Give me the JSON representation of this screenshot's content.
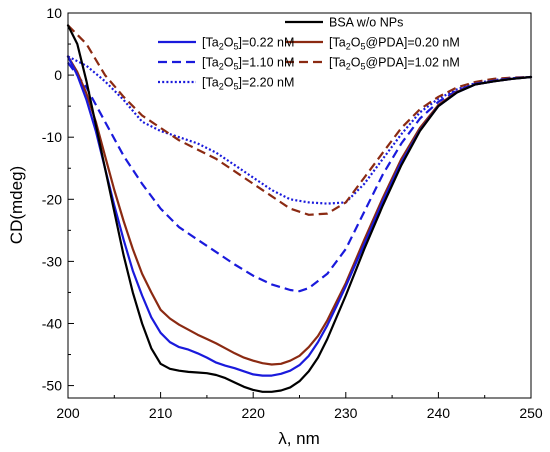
{
  "chart_data": {
    "type": "line",
    "xlabel": "λ, nm",
    "ylabel": "CD(mdeg)",
    "xlim": [
      200,
      250
    ],
    "ylim": [
      -52,
      10
    ],
    "x_ticks": [
      200,
      210,
      220,
      230,
      240,
      250
    ],
    "y_ticks": [
      10,
      0,
      -10,
      -20,
      -30,
      -40,
      -50
    ],
    "grid": false,
    "legend_position": "top-right",
    "series": [
      {
        "name": "BSA w/o NPs",
        "color": "#000000",
        "dash": "solid",
        "x": [
          200,
          201,
          202,
          203,
          204,
          205,
          206,
          207,
          208,
          209,
          210,
          211,
          212,
          213,
          214,
          215,
          216,
          217,
          218,
          219,
          220,
          221,
          222,
          223,
          224,
          225,
          226,
          227,
          228,
          229,
          230,
          232,
          234,
          236,
          238,
          240,
          242,
          244,
          246,
          248,
          250
        ],
        "y": [
          8,
          5,
          -1,
          -8,
          -15,
          -22,
          -29,
          -35,
          -40,
          -44,
          -46.5,
          -47.3,
          -47.6,
          -47.8,
          -47.9,
          -48,
          -48.3,
          -48.8,
          -49.5,
          -50.2,
          -50.7,
          -51,
          -51,
          -50.8,
          -50.3,
          -49.3,
          -47.7,
          -45.5,
          -42.5,
          -39,
          -35.5,
          -28,
          -21,
          -14.5,
          -9,
          -5,
          -2.8,
          -1.5,
          -1,
          -0.6,
          -0.3
        ]
      },
      {
        "name": "[Ta2O5]=0.22 nM",
        "color": "#1a1adc",
        "dash": "solid",
        "x": [
          200,
          201,
          202,
          203,
          204,
          205,
          206,
          207,
          208,
          209,
          210,
          211,
          212,
          213,
          214,
          215,
          216,
          217,
          218,
          219,
          220,
          221,
          222,
          223,
          224,
          225,
          226,
          227,
          228,
          229,
          230,
          232,
          234,
          236,
          238,
          240,
          242,
          244,
          246,
          248,
          250
        ],
        "y": [
          3,
          0,
          -4,
          -9,
          -15,
          -21,
          -26.5,
          -31.5,
          -35.5,
          -39,
          -41.5,
          -43,
          -43.8,
          -44.2,
          -44.8,
          -45.5,
          -46.3,
          -46.8,
          -47.2,
          -47.7,
          -48.2,
          -48.4,
          -48.4,
          -48.1,
          -47.6,
          -46.7,
          -45.2,
          -43,
          -40.3,
          -37.2,
          -34,
          -27.2,
          -20.3,
          -14,
          -8.9,
          -5,
          -2.8,
          -1.5,
          -1,
          -0.6,
          -0.3
        ]
      },
      {
        "name": "[Ta2O5@PDA]=0.20 nM",
        "color": "#8b2a12",
        "dash": "solid",
        "x": [
          200,
          201,
          202,
          203,
          204,
          205,
          206,
          207,
          208,
          209,
          210,
          211,
          212,
          213,
          214,
          215,
          216,
          217,
          218,
          219,
          220,
          221,
          222,
          223,
          224,
          225,
          226,
          227,
          228,
          229,
          230,
          232,
          234,
          236,
          238,
          240,
          242,
          244,
          246,
          248,
          250
        ],
        "y": [
          3,
          0.5,
          -3,
          -7.5,
          -13,
          -18.5,
          -23.5,
          -28,
          -32,
          -35,
          -37.8,
          -39.2,
          -40.2,
          -41,
          -41.8,
          -42.5,
          -43.2,
          -44,
          -44.8,
          -45.5,
          -46,
          -46.4,
          -46.6,
          -46.5,
          -46,
          -45.2,
          -43.8,
          -42,
          -39.5,
          -36.5,
          -33.5,
          -26.5,
          -19.8,
          -13.5,
          -8.5,
          -4.8,
          -2.7,
          -1.5,
          -1,
          -0.6,
          -0.3
        ]
      },
      {
        "name": "[Ta2O5]=1.10 nM",
        "color": "#1a1adc",
        "dash": "dashed",
        "x": [
          200,
          202,
          204,
          206,
          208,
          210,
          212,
          214,
          216,
          218,
          220,
          222,
          224,
          225,
          226,
          228,
          230,
          232,
          234,
          236,
          238,
          240,
          242,
          244,
          246,
          248,
          250
        ],
        "y": [
          2,
          -2,
          -7.5,
          -13,
          -17.5,
          -21.5,
          -24.5,
          -26.5,
          -28.5,
          -30.5,
          -32.3,
          -33.7,
          -34.6,
          -34.8,
          -34.3,
          -32,
          -28,
          -22,
          -16,
          -11,
          -7,
          -4.3,
          -2.5,
          -1.4,
          -0.9,
          -0.5,
          -0.3
        ]
      },
      {
        "name": "[Ta2O5@PDA]=1.02 nM",
        "color": "#8b2a12",
        "dash": "dashed",
        "x": [
          200,
          202,
          204,
          206,
          208,
          210,
          212,
          214,
          216,
          218,
          220,
          222,
          224,
          226,
          228,
          230,
          232,
          234,
          236,
          238,
          240,
          242,
          244,
          246,
          248,
          250
        ],
        "y": [
          8,
          5,
          0,
          -3.5,
          -6.5,
          -8.5,
          -10.5,
          -12,
          -13.5,
          -15.5,
          -17.5,
          -19.5,
          -21.5,
          -22.5,
          -22.3,
          -20.5,
          -16.5,
          -12.5,
          -8.5,
          -5.5,
          -3.5,
          -2,
          -1.1,
          -0.6,
          -0.4,
          -0.3
        ]
      },
      {
        "name": "[Ta2O5]=2.20 nM",
        "color": "#1a1adc",
        "dash": "dotted",
        "x": [
          200,
          202,
          204,
          206,
          208,
          210,
          212,
          214,
          216,
          218,
          220,
          222,
          224,
          226,
          228,
          230,
          232,
          234,
          236,
          238,
          240,
          242,
          244,
          246,
          248,
          250
        ],
        "y": [
          3,
          1.5,
          -1,
          -4,
          -7.5,
          -9,
          -10,
          -11,
          -12.5,
          -14.5,
          -16.5,
          -18.5,
          -20,
          -20.5,
          -20.7,
          -20.5,
          -17.5,
          -13.5,
          -9.5,
          -6,
          -3.8,
          -2.3,
          -1.3,
          -0.8,
          -0.5,
          -0.3
        ]
      }
    ],
    "legend_left": [
      {
        "prefix": "[Ta",
        "sub1": "2",
        "mid": "O",
        "sub2": "5",
        "suffix": "]=0.22 nM",
        "color": "#1a1adc",
        "dash": "solid"
      },
      {
        "prefix": "[Ta",
        "sub1": "2",
        "mid": "O",
        "sub2": "5",
        "suffix": "]=1.10 nM",
        "color": "#1a1adc",
        "dash": "dashed"
      },
      {
        "prefix": "[Ta",
        "sub1": "2",
        "mid": "O",
        "sub2": "5",
        "suffix": "]=2.20 nM",
        "color": "#1a1adc",
        "dash": "dotted"
      }
    ],
    "legend_right": [
      {
        "prefix": "BSA w/o NPs",
        "sub1": "",
        "mid": "",
        "sub2": "",
        "suffix": "",
        "color": "#000000",
        "dash": "solid"
      },
      {
        "prefix": "[Ta",
        "sub1": "2",
        "mid": "O",
        "sub2": "5",
        "suffix": "@PDA]=0.20 nM",
        "color": "#8b2a12",
        "dash": "solid"
      },
      {
        "prefix": "[Ta",
        "sub1": "2",
        "mid": "O",
        "sub2": "5",
        "suffix": "@PDA]=1.02 nM",
        "color": "#8b2a12",
        "dash": "dashed"
      }
    ]
  }
}
